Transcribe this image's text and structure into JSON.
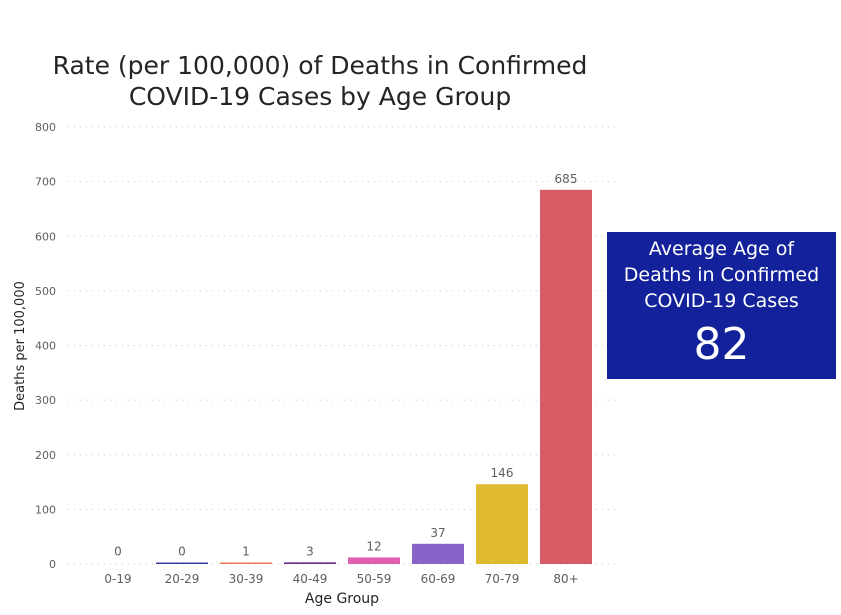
{
  "chart_data": {
    "type": "bar",
    "title": "Rate (per 100,000) of Deaths in Confirmed COVID-19 Cases by Age Group",
    "title_lines": [
      "Rate (per 100,000) of Deaths in Confirmed",
      "COVID-19 Cases by Age Group"
    ],
    "xlabel": "Age Group",
    "ylabel": "Deaths per 100,000",
    "categories": [
      "0-19",
      "20-29",
      "30-39",
      "40-49",
      "50-59",
      "60-69",
      "70-79",
      "80+"
    ],
    "values": [
      0,
      0,
      1,
      3,
      12,
      37,
      146,
      685
    ],
    "colors": [
      "#41b6e6",
      "#3a3f9e",
      "#f07b50",
      "#6b2d8f",
      "#e05fb0",
      "#8764c8",
      "#dfb92f",
      "#d85c65"
    ],
    "ylim": [
      0,
      800
    ],
    "yticks": [
      0,
      100,
      200,
      300,
      400,
      500,
      600,
      700,
      800
    ],
    "grid": true
  },
  "card": {
    "label_lines": [
      "Average Age of",
      "Deaths in Confirmed",
      "COVID-19 Cases"
    ],
    "value": "82",
    "color": "#13219a"
  }
}
